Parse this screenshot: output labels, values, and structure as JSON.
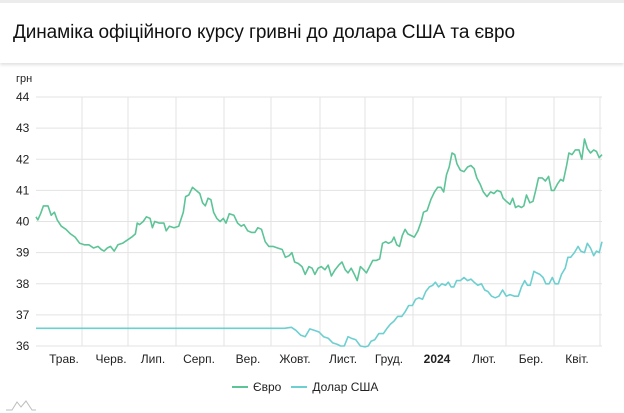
{
  "header": {
    "title": "Динаміка офіційного курсу гривні до долара США та євро"
  },
  "chart_data": {
    "type": "line",
    "title": "Динаміка офіційного курсу гривні до долара США та євро",
    "ylabel": "грн",
    "xlabel": "",
    "ylim": [
      36,
      44
    ],
    "yticks": [
      36,
      37,
      38,
      39,
      40,
      41,
      42,
      43,
      44
    ],
    "grid": true,
    "legend_position": "bottom",
    "x_ticks": [
      {
        "label": "Трав.",
        "bold": false
      },
      {
        "label": "Черв.",
        "bold": false
      },
      {
        "label": "Лип.",
        "bold": false
      },
      {
        "label": "Серп.",
        "bold": false
      },
      {
        "label": "Вер.",
        "bold": false
      },
      {
        "label": "Жовт.",
        "bold": false
      },
      {
        "label": "Лист.",
        "bold": false
      },
      {
        "label": "Груд.",
        "bold": false
      },
      {
        "label": "2024",
        "bold": true
      },
      {
        "label": "Лют.",
        "bold": false
      },
      {
        "label": "Бер.",
        "bold": false
      },
      {
        "label": "Квіт.",
        "bold": false
      }
    ],
    "x_months_index_note": "x in months from mid-April 2023 (0) to end of April 2024 (12.3)",
    "series": [
      {
        "name": "Євро",
        "color": "#5cc497",
        "points": [
          [
            0.0,
            40.15
          ],
          [
            0.04,
            40.05
          ],
          [
            0.1,
            40.25
          ],
          [
            0.16,
            40.5
          ],
          [
            0.26,
            40.5
          ],
          [
            0.33,
            40.2
          ],
          [
            0.4,
            40.3
          ],
          [
            0.46,
            40.05
          ],
          [
            0.55,
            39.85
          ],
          [
            0.65,
            39.75
          ],
          [
            0.75,
            39.6
          ],
          [
            0.85,
            39.5
          ],
          [
            0.95,
            39.3
          ],
          [
            1.05,
            39.25
          ],
          [
            1.15,
            39.25
          ],
          [
            1.25,
            39.15
          ],
          [
            1.35,
            39.2
          ],
          [
            1.42,
            39.1
          ],
          [
            1.48,
            39.05
          ],
          [
            1.55,
            39.15
          ],
          [
            1.62,
            39.2
          ],
          [
            1.7,
            39.05
          ],
          [
            1.78,
            39.25
          ],
          [
            1.88,
            39.3
          ],
          [
            1.98,
            39.4
          ],
          [
            2.08,
            39.5
          ],
          [
            2.16,
            39.6
          ],
          [
            2.2,
            39.95
          ],
          [
            2.25,
            39.9
          ],
          [
            2.33,
            40.0
          ],
          [
            2.4,
            40.15
          ],
          [
            2.48,
            40.1
          ],
          [
            2.53,
            39.8
          ],
          [
            2.58,
            40.0
          ],
          [
            2.68,
            39.95
          ],
          [
            2.78,
            39.95
          ],
          [
            2.83,
            39.7
          ],
          [
            2.9,
            39.85
          ],
          [
            3.0,
            39.8
          ],
          [
            3.1,
            39.85
          ],
          [
            3.2,
            40.3
          ],
          [
            3.25,
            40.8
          ],
          [
            3.32,
            40.85
          ],
          [
            3.4,
            41.1
          ],
          [
            3.48,
            41.0
          ],
          [
            3.56,
            40.9
          ],
          [
            3.62,
            40.6
          ],
          [
            3.68,
            40.5
          ],
          [
            3.74,
            40.75
          ],
          [
            3.8,
            40.7
          ],
          [
            3.86,
            40.3
          ],
          [
            3.93,
            40.1
          ],
          [
            4.0,
            40.0
          ],
          [
            4.07,
            40.1
          ],
          [
            4.13,
            39.95
          ],
          [
            4.2,
            40.25
          ],
          [
            4.3,
            40.2
          ],
          [
            4.38,
            39.95
          ],
          [
            4.46,
            39.85
          ],
          [
            4.52,
            39.9
          ],
          [
            4.6,
            39.7
          ],
          [
            4.68,
            39.65
          ],
          [
            4.76,
            39.65
          ],
          [
            4.82,
            39.8
          ],
          [
            4.9,
            39.75
          ],
          [
            4.98,
            39.35
          ],
          [
            5.06,
            39.2
          ],
          [
            5.15,
            39.2
          ],
          [
            5.25,
            39.15
          ],
          [
            5.35,
            39.1
          ],
          [
            5.42,
            38.85
          ],
          [
            5.5,
            38.9
          ],
          [
            5.56,
            39.0
          ],
          [
            5.62,
            38.7
          ],
          [
            5.7,
            38.65
          ],
          [
            5.78,
            38.55
          ],
          [
            5.85,
            38.3
          ],
          [
            5.93,
            38.55
          ],
          [
            6.0,
            38.5
          ],
          [
            6.06,
            38.3
          ],
          [
            6.13,
            38.5
          ],
          [
            6.2,
            38.55
          ],
          [
            6.28,
            38.45
          ],
          [
            6.35,
            38.6
          ],
          [
            6.42,
            38.25
          ],
          [
            6.5,
            38.45
          ],
          [
            6.58,
            38.6
          ],
          [
            6.65,
            38.7
          ],
          [
            6.72,
            38.45
          ],
          [
            6.78,
            38.35
          ],
          [
            6.85,
            38.5
          ],
          [
            6.92,
            38.3
          ],
          [
            6.98,
            38.1
          ],
          [
            7.05,
            38.55
          ],
          [
            7.12,
            38.45
          ],
          [
            7.18,
            38.35
          ],
          [
            7.25,
            38.55
          ],
          [
            7.32,
            38.75
          ],
          [
            7.4,
            38.75
          ],
          [
            7.47,
            38.8
          ],
          [
            7.53,
            39.3
          ],
          [
            7.6,
            39.35
          ],
          [
            7.66,
            39.3
          ],
          [
            7.73,
            39.35
          ],
          [
            7.78,
            39.5
          ],
          [
            7.84,
            39.25
          ],
          [
            7.9,
            39.2
          ],
          [
            7.96,
            39.55
          ],
          [
            8.02,
            39.75
          ],
          [
            8.08,
            39.6
          ],
          [
            8.15,
            39.55
          ],
          [
            8.22,
            39.5
          ],
          [
            8.3,
            39.7
          ],
          [
            8.37,
            40.0
          ],
          [
            8.42,
            40.3
          ],
          [
            8.5,
            40.35
          ],
          [
            8.58,
            40.7
          ],
          [
            8.66,
            40.95
          ],
          [
            8.73,
            41.1
          ],
          [
            8.8,
            41.1
          ],
          [
            8.86,
            40.95
          ],
          [
            8.92,
            41.5
          ],
          [
            8.98,
            41.75
          ],
          [
            9.04,
            42.2
          ],
          [
            9.1,
            42.15
          ],
          [
            9.15,
            41.85
          ],
          [
            9.22,
            41.65
          ],
          [
            9.3,
            41.6
          ],
          [
            9.38,
            41.75
          ],
          [
            9.45,
            41.8
          ],
          [
            9.52,
            41.7
          ],
          [
            9.58,
            41.4
          ],
          [
            9.65,
            41.2
          ],
          [
            9.72,
            40.95
          ],
          [
            9.8,
            40.8
          ],
          [
            9.88,
            40.95
          ],
          [
            9.95,
            40.9
          ],
          [
            10.02,
            41.0
          ],
          [
            10.1,
            40.95
          ],
          [
            10.15,
            40.75
          ],
          [
            10.22,
            40.65
          ],
          [
            10.3,
            40.55
          ],
          [
            10.36,
            40.75
          ],
          [
            10.42,
            40.45
          ],
          [
            10.48,
            40.5
          ],
          [
            10.55,
            40.45
          ],
          [
            10.6,
            40.5
          ],
          [
            10.66,
            40.85
          ],
          [
            10.73,
            40.6
          ],
          [
            10.8,
            40.65
          ],
          [
            10.86,
            41.0
          ],
          [
            10.92,
            41.4
          ],
          [
            11.0,
            41.4
          ],
          [
            11.07,
            41.3
          ],
          [
            11.14,
            41.45
          ],
          [
            11.2,
            41.0
          ],
          [
            11.26,
            41.0
          ],
          [
            11.33,
            41.2
          ],
          [
            11.4,
            41.35
          ],
          [
            11.46,
            41.3
          ],
          [
            11.53,
            41.8
          ],
          [
            11.58,
            42.2
          ],
          [
            11.65,
            42.15
          ],
          [
            11.72,
            42.3
          ],
          [
            11.8,
            42.3
          ],
          [
            11.86,
            42.0
          ],
          [
            11.92,
            42.65
          ],
          [
            11.98,
            42.35
          ],
          [
            12.05,
            42.2
          ],
          [
            12.12,
            42.3
          ],
          [
            12.18,
            42.25
          ],
          [
            12.24,
            42.05
          ],
          [
            12.3,
            42.15
          ]
        ]
      },
      {
        "name": "Долар США",
        "color": "#6dcfd0",
        "points": [
          [
            0.0,
            36.57
          ],
          [
            1.0,
            36.57
          ],
          [
            2.0,
            36.57
          ],
          [
            3.0,
            36.57
          ],
          [
            4.0,
            36.57
          ],
          [
            5.0,
            36.57
          ],
          [
            5.4,
            36.57
          ],
          [
            5.55,
            36.6
          ],
          [
            5.65,
            36.5
          ],
          [
            5.75,
            36.35
          ],
          [
            5.85,
            36.3
          ],
          [
            5.95,
            36.55
          ],
          [
            6.05,
            36.5
          ],
          [
            6.15,
            36.45
          ],
          [
            6.25,
            36.3
          ],
          [
            6.35,
            36.25
          ],
          [
            6.45,
            36.1
          ],
          [
            6.55,
            36.05
          ],
          [
            6.62,
            36.0
          ],
          [
            6.7,
            36.0
          ],
          [
            6.78,
            36.3
          ],
          [
            6.85,
            36.25
          ],
          [
            6.95,
            36.2
          ],
          [
            7.05,
            36.0
          ],
          [
            7.15,
            35.97
          ],
          [
            7.22,
            36.0
          ],
          [
            7.28,
            36.15
          ],
          [
            7.36,
            36.2
          ],
          [
            7.45,
            36.4
          ],
          [
            7.55,
            36.4
          ],
          [
            7.62,
            36.55
          ],
          [
            7.7,
            36.7
          ],
          [
            7.78,
            36.8
          ],
          [
            7.86,
            36.95
          ],
          [
            7.95,
            36.95
          ],
          [
            8.02,
            37.1
          ],
          [
            8.1,
            37.3
          ],
          [
            8.18,
            37.3
          ],
          [
            8.25,
            37.5
          ],
          [
            8.32,
            37.55
          ],
          [
            8.4,
            37.5
          ],
          [
            8.47,
            37.75
          ],
          [
            8.55,
            37.9
          ],
          [
            8.62,
            37.95
          ],
          [
            8.68,
            38.05
          ],
          [
            8.75,
            37.9
          ],
          [
            8.82,
            38.0
          ],
          [
            8.9,
            37.95
          ],
          [
            8.96,
            38.05
          ],
          [
            9.02,
            37.9
          ],
          [
            9.08,
            37.9
          ],
          [
            9.14,
            38.1
          ],
          [
            9.22,
            38.1
          ],
          [
            9.3,
            38.2
          ],
          [
            9.38,
            38.1
          ],
          [
            9.45,
            38.15
          ],
          [
            9.52,
            38.05
          ],
          [
            9.6,
            37.95
          ],
          [
            9.68,
            38.0
          ],
          [
            9.75,
            37.8
          ],
          [
            9.82,
            37.75
          ],
          [
            9.9,
            37.6
          ],
          [
            9.98,
            37.55
          ],
          [
            10.06,
            37.6
          ],
          [
            10.14,
            37.8
          ],
          [
            10.22,
            37.6
          ],
          [
            10.3,
            37.65
          ],
          [
            10.4,
            37.6
          ],
          [
            10.48,
            37.6
          ],
          [
            10.55,
            37.9
          ],
          [
            10.62,
            38.1
          ],
          [
            10.68,
            37.95
          ],
          [
            10.74,
            37.95
          ],
          [
            10.82,
            38.4
          ],
          [
            10.88,
            38.35
          ],
          [
            10.95,
            38.3
          ],
          [
            11.02,
            38.2
          ],
          [
            11.08,
            38.0
          ],
          [
            11.15,
            38.0
          ],
          [
            11.22,
            38.2
          ],
          [
            11.28,
            38.0
          ],
          [
            11.35,
            38.0
          ],
          [
            11.42,
            38.3
          ],
          [
            11.5,
            38.5
          ],
          [
            11.56,
            38.85
          ],
          [
            11.62,
            38.85
          ],
          [
            11.7,
            39.0
          ],
          [
            11.78,
            39.2
          ],
          [
            11.84,
            39.05
          ],
          [
            11.92,
            39.0
          ],
          [
            11.98,
            39.3
          ],
          [
            12.05,
            39.15
          ],
          [
            12.12,
            38.9
          ],
          [
            12.18,
            39.05
          ],
          [
            12.24,
            39.0
          ],
          [
            12.3,
            39.35
          ]
        ]
      }
    ]
  },
  "axis": {
    "unit_label": "грн"
  },
  "legend": [
    {
      "label": "Євро",
      "color": "#5cc497"
    },
    {
      "label": "Долар США",
      "color": "#6dcfd0"
    }
  ]
}
